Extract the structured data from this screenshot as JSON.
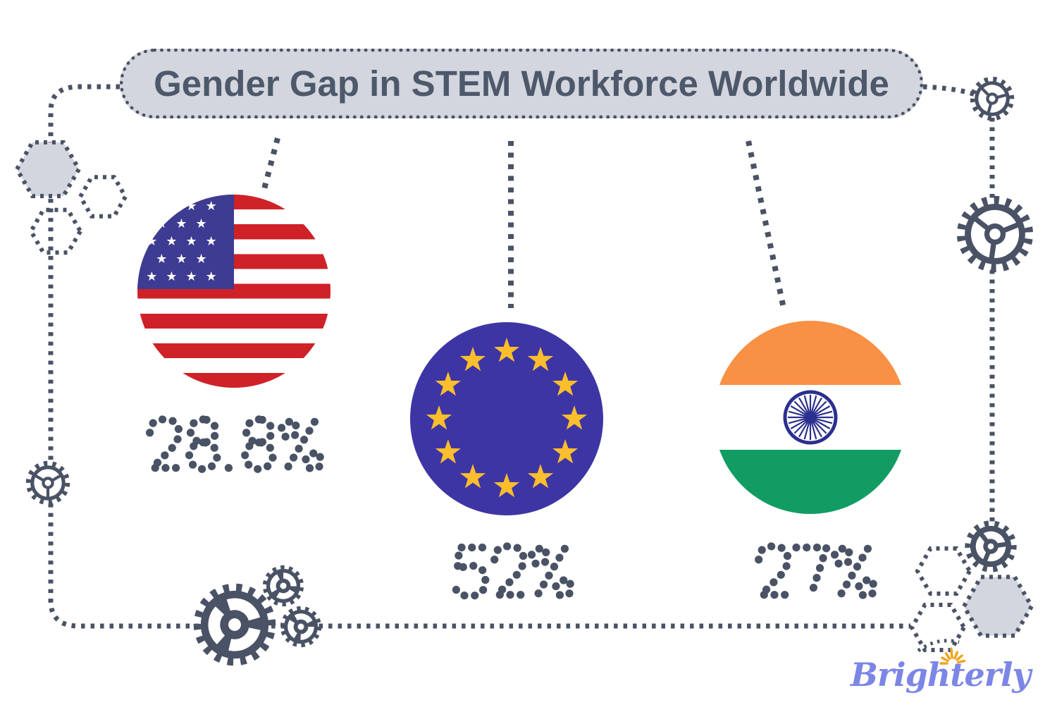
{
  "title": {
    "text": "Gender Gap in STEM Workforce Worldwide"
  },
  "stats": [
    {
      "region": "United States",
      "flag": "usa-flag-icon",
      "value": "28.8%"
    },
    {
      "region": "European Union",
      "flag": "eu-flag-icon",
      "value": "52%"
    },
    {
      "region": "India",
      "flag": "india-flag-icon",
      "value": "27%"
    }
  ],
  "logo": {
    "text": "Brighterly"
  },
  "colors": {
    "slate": "#4a5265",
    "pill_bg": "#d3d6de",
    "title_text": "#4d586b",
    "usa_red": "#cf2128",
    "usa_blue": "#3d3b92",
    "eu_blue": "#3e35a5",
    "eu_star": "#fcbe2c",
    "india_saffron": "#f89045",
    "india_green": "#129c63",
    "india_navy": "#2b2f8e",
    "logo_blue": "#7c86e6",
    "logo_sun": "#f2a51e"
  },
  "decor_icons": [
    "gear-icon",
    "hexagon-icon",
    "dotted-line",
    "sun-icon"
  ],
  "chart_data": {
    "type": "table",
    "title": "Gender Gap in STEM Workforce Worldwide",
    "categories": [
      "United States",
      "European Union",
      "India"
    ],
    "values": [
      28.8,
      52,
      27
    ],
    "unit": "%"
  }
}
